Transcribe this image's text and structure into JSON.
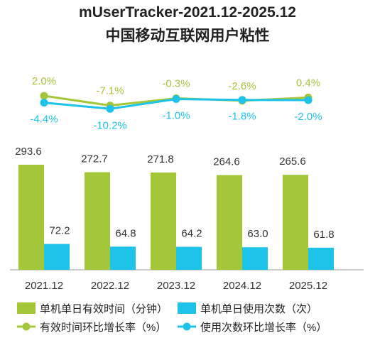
{
  "title_line1": "mUserTracker-2021.12-2025.12",
  "title_line2": "中国移动互联网用户粘性",
  "chart_data": {
    "type": "bar",
    "categories": [
      "2021.12",
      "2022.12",
      "2023.12",
      "2024.12",
      "2025.12"
    ],
    "series": [
      {
        "name": "单机单日有效时间（分钟）",
        "type": "bar",
        "color": "#a4c639",
        "values": [
          293.6,
          272.7,
          271.8,
          264.6,
          265.6
        ],
        "labels": [
          "293.6",
          "272.7",
          "271.8",
          "264.6",
          "265.6"
        ]
      },
      {
        "name": "单机单日使用次数（次）",
        "type": "bar",
        "color": "#1ec3ea",
        "values": [
          72.2,
          64.8,
          64.2,
          63.0,
          61.8
        ],
        "labels": [
          "72.2",
          "64.8",
          "64.2",
          "63.0",
          "61.8"
        ]
      },
      {
        "name": "有效时间环比增长率（%）",
        "type": "line",
        "color": "#a4c639",
        "values": [
          2.0,
          -7.1,
          -0.3,
          -2.6,
          0.4
        ],
        "labels": [
          "2.0%",
          "-7.1%",
          "-0.3%",
          "-2.6%",
          "0.4%"
        ]
      },
      {
        "name": "使用次数环比增长率（%）",
        "type": "line",
        "color": "#1ec3ea",
        "values": [
          -4.4,
          -10.2,
          -1.0,
          -1.8,
          -2.0
        ],
        "labels": [
          "-4.4%",
          "-10.2%",
          "-1.0%",
          "-1.8%",
          "-2.0%"
        ]
      }
    ],
    "legend_position": "bottom",
    "grid": false
  }
}
